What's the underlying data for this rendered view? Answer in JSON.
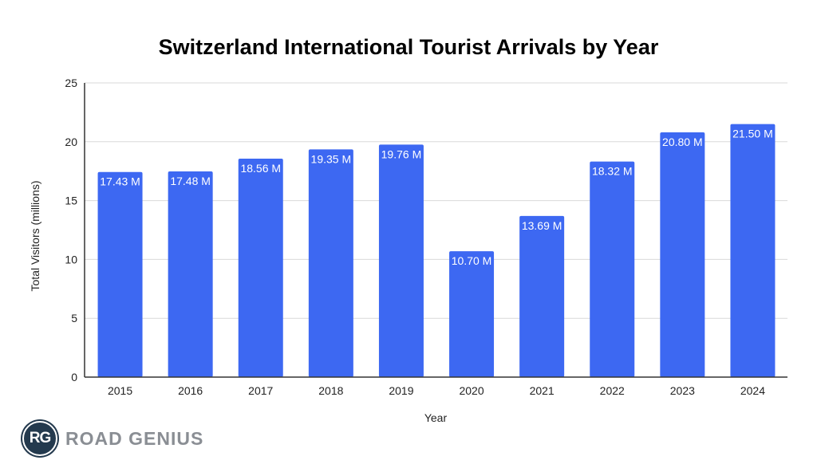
{
  "chart_data": {
    "type": "bar",
    "title": "Switzerland International Tourist Arrivals by Year",
    "xlabel": "Year",
    "ylabel": "Total Visitors (millions)",
    "ylim": [
      0,
      25
    ],
    "yticks": [
      0,
      5,
      10,
      15,
      20,
      25
    ],
    "grid": true,
    "categories": [
      "2015",
      "2016",
      "2017",
      "2018",
      "2019",
      "2020",
      "2021",
      "2022",
      "2023",
      "2024"
    ],
    "values": [
      17.43,
      17.48,
      18.56,
      19.35,
      19.76,
      10.7,
      13.69,
      18.32,
      20.8,
      21.5
    ],
    "data_labels": [
      "17.43 M",
      "17.48 M",
      "18.56 M",
      "19.35 M",
      "19.76 M",
      "10.70 M",
      "13.69 M",
      "18.32 M",
      "20.80 M",
      "21.50 M"
    ],
    "bar_color": "#3d68f2"
  },
  "logo": {
    "initials": "RG",
    "name": "ROAD GENIUS"
  }
}
